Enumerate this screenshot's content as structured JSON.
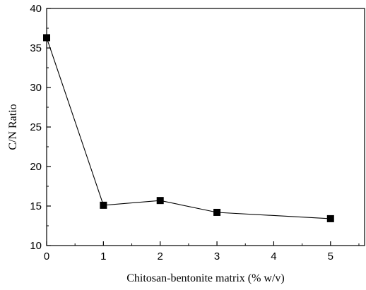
{
  "chart_data": {
    "type": "line",
    "title": "",
    "xlabel": "Chitosan-bentonite matrix (% w/v)",
    "ylabel": "C/N Ratio",
    "xlim": [
      0,
      5.6
    ],
    "ylim": [
      10,
      40
    ],
    "xticks": [
      0,
      1,
      2,
      3,
      4,
      5
    ],
    "yticks": [
      10,
      15,
      20,
      25,
      30,
      35,
      40
    ],
    "grid": false,
    "legend": "none",
    "marker": "filled-square",
    "line_color": "#000000",
    "series": [
      {
        "x": [
          0,
          1,
          2,
          3,
          5
        ],
        "y": [
          36.3,
          15.1,
          15.7,
          14.2,
          13.4
        ]
      }
    ]
  }
}
